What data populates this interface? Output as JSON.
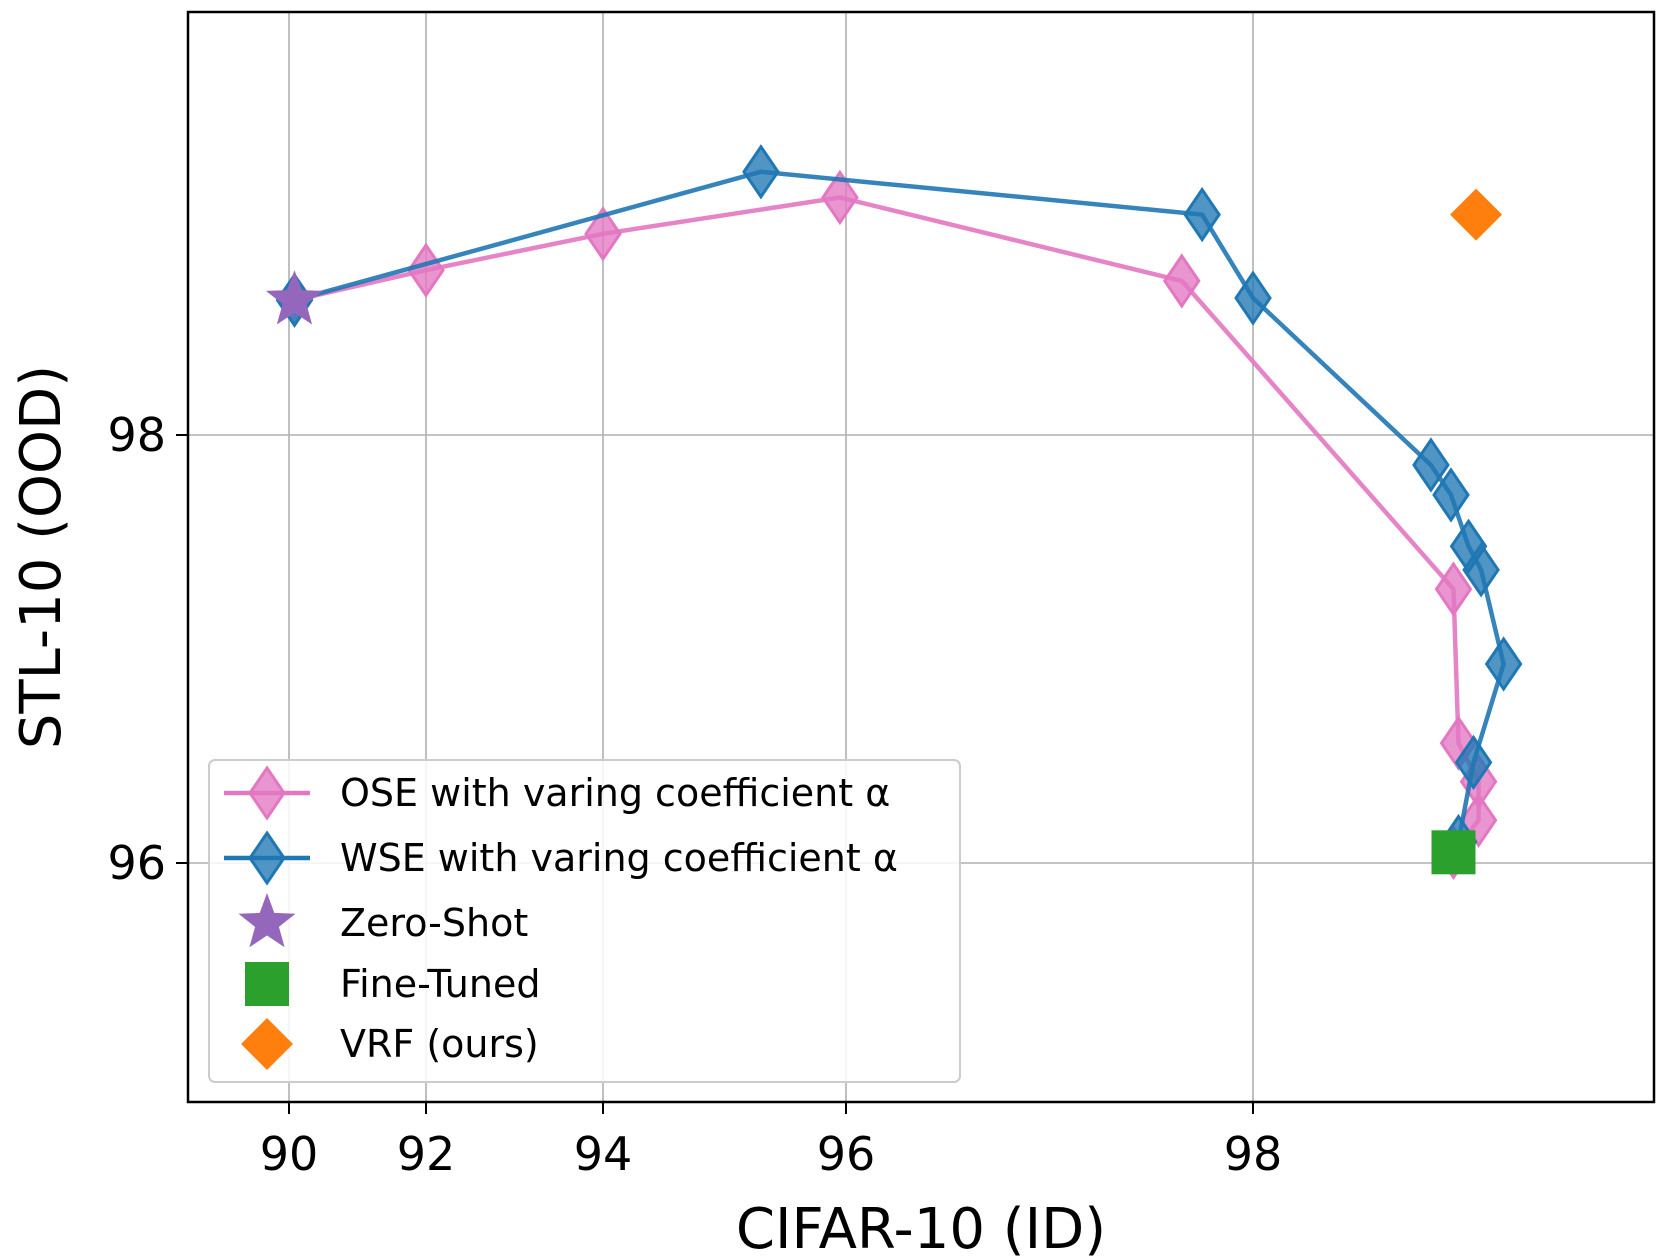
{
  "chart_data": {
    "type": "line",
    "title": "",
    "xlabel": "CIFAR-10 (ID)",
    "ylabel": "STL-10 (OOD)",
    "xticks": [
      {
        "value": 90,
        "label": "90"
      },
      {
        "value": 92,
        "label": "92"
      },
      {
        "value": 94,
        "label": "94"
      },
      {
        "value": 96,
        "label": "96"
      },
      {
        "value": 98,
        "label": "98"
      }
    ],
    "yticks": [
      {
        "value": 96,
        "label": "96"
      },
      {
        "value": 98,
        "label": "98"
      }
    ],
    "grid": true,
    "legend_position": "lower-left",
    "series": [
      {
        "name": "OSE with varing coefficient α",
        "color": "#e377c2",
        "marker": "thin-diamond",
        "points": [
          [
            90.08,
            98.63
          ],
          [
            92.0,
            98.77
          ],
          [
            94.0,
            98.94
          ],
          [
            95.95,
            99.11
          ],
          [
            97.65,
            98.72
          ],
          [
            98.8,
            97.28
          ],
          [
            98.82,
            96.56
          ],
          [
            98.9,
            96.38
          ],
          [
            98.9,
            96.2
          ],
          [
            98.8,
            96.05
          ]
        ]
      },
      {
        "name": "WSE with varing coefficient α",
        "color": "#1f77b4",
        "marker": "thin-diamond",
        "points": [
          [
            90.08,
            98.63
          ],
          [
            95.3,
            99.23
          ],
          [
            97.75,
            99.03
          ],
          [
            98.0,
            98.64
          ],
          [
            98.71,
            97.86
          ],
          [
            98.79,
            97.72
          ],
          [
            98.86,
            97.48
          ],
          [
            98.91,
            97.37
          ],
          [
            99.0,
            96.93
          ],
          [
            98.88,
            96.47
          ],
          [
            98.82,
            96.1
          ]
        ]
      }
    ],
    "singles": [
      {
        "name": "Zero-Shot",
        "color": "#9467bd",
        "marker": "star",
        "x": 90.08,
        "y": 98.63
      },
      {
        "name": "Fine-Tuned",
        "color": "#2ca02c",
        "marker": "square",
        "x": 98.8,
        "y": 96.05
      },
      {
        "name": "VRF (ours)",
        "color": "#ff7f0e",
        "marker": "diamond",
        "x": 98.89,
        "y": 99.03
      }
    ],
    "legend": [
      {
        "label": "OSE with varing coefficient α",
        "color": "#e377c2",
        "marker": "thin-diamond",
        "line": true
      },
      {
        "label": "WSE with varing coefficient α",
        "color": "#1f77b4",
        "marker": "thin-diamond",
        "line": true
      },
      {
        "label": "Zero-Shot",
        "color": "#9467bd",
        "marker": "star",
        "line": false
      },
      {
        "label": "Fine-Tuned",
        "color": "#2ca02c",
        "marker": "square",
        "line": false
      },
      {
        "label": "VRF (ours)",
        "color": "#ff7f0e",
        "marker": "diamond",
        "line": false
      }
    ]
  }
}
